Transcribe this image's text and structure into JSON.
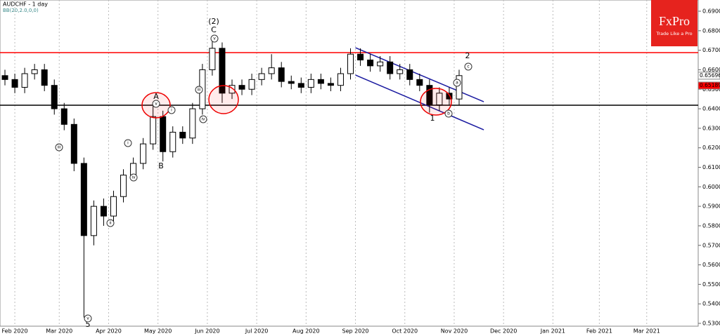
{
  "chart_data": {
    "type": "candlestick",
    "title": "AUDCHF  - 1 day",
    "subtitle": "BB(20,2.0,0,0)",
    "brand": "FxPro",
    "tagline": "Trade Like a Pro",
    "categories": [
      null,
      null,
      null,
      null,
      null,
      null,
      null,
      null,
      null,
      null,
      null,
      null,
      null,
      null,
      null,
      null,
      null,
      null,
      null,
      null,
      null,
      null,
      null,
      null,
      null,
      null,
      null,
      null,
      null,
      null,
      null,
      null,
      null,
      null,
      null,
      null,
      null,
      null,
      null,
      null,
      null,
      null,
      null,
      null,
      null,
      null,
      null
    ],
    "open": [
      0.657,
      0.655,
      0.651,
      0.658,
      0.66,
      0.652,
      0.64,
      0.632,
      0.612,
      0.575,
      0.59,
      0.585,
      0.595,
      0.606,
      0.612,
      0.622,
      0.636,
      0.618,
      0.628,
      0.625,
      0.64,
      0.66,
      0.671,
      0.648,
      0.652,
      0.65,
      0.655,
      0.658,
      0.661,
      0.654,
      0.653,
      0.651,
      0.655,
      0.653,
      0.652,
      0.658,
      0.668,
      0.665,
      0.662,
      0.664,
      0.658,
      0.66,
      0.655,
      0.652,
      0.642,
      0.648,
      0.645
    ],
    "high": [
      0.66,
      0.658,
      0.661,
      0.663,
      0.663,
      0.655,
      0.643,
      0.635,
      0.615,
      0.593,
      0.594,
      0.598,
      0.609,
      0.615,
      0.625,
      0.643,
      0.639,
      0.631,
      0.631,
      0.643,
      0.663,
      0.676,
      0.674,
      0.655,
      0.655,
      0.658,
      0.661,
      0.668,
      0.664,
      0.657,
      0.656,
      0.658,
      0.658,
      0.656,
      0.661,
      0.671,
      0.671,
      0.668,
      0.667,
      0.667,
      0.663,
      0.663,
      0.658,
      0.655,
      0.651,
      0.651,
      0.66
    ],
    "low": [
      0.652,
      0.648,
      0.648,
      0.655,
      0.649,
      0.637,
      0.629,
      0.608,
      0.533,
      0.57,
      0.58,
      0.582,
      0.592,
      0.603,
      0.609,
      0.619,
      0.613,
      0.615,
      0.622,
      0.622,
      0.637,
      0.657,
      0.643,
      0.645,
      0.647,
      0.647,
      0.652,
      0.655,
      0.651,
      0.65,
      0.648,
      0.648,
      0.65,
      0.649,
      0.649,
      0.655,
      0.662,
      0.659,
      0.659,
      0.655,
      0.655,
      0.652,
      0.649,
      0.638,
      0.639,
      0.642,
      0.642
    ],
    "close": [
      0.655,
      0.651,
      0.658,
      0.66,
      0.652,
      0.64,
      0.632,
      0.612,
      0.575,
      0.59,
      0.585,
      0.595,
      0.606,
      0.612,
      0.622,
      0.636,
      0.618,
      0.628,
      0.625,
      0.64,
      0.66,
      0.671,
      0.648,
      0.652,
      0.65,
      0.655,
      0.658,
      0.661,
      0.654,
      0.653,
      0.651,
      0.655,
      0.653,
      0.652,
      0.658,
      0.668,
      0.665,
      0.662,
      0.664,
      0.658,
      0.66,
      0.655,
      0.652,
      0.642,
      0.648,
      0.645,
      0.657
    ],
    "xlim": [
      -0.5,
      70
    ],
    "xticks": [
      {
        "value": 1,
        "label": "Feb 2020"
      },
      {
        "value": 5.5,
        "label": "Mar 2020"
      },
      {
        "value": 10.5,
        "label": "Apr 2020"
      },
      {
        "value": 15.5,
        "label": "May 2020"
      },
      {
        "value": 20.5,
        "label": "Jun 2020"
      },
      {
        "value": 25.5,
        "label": "Jul 2020"
      },
      {
        "value": 30.5,
        "label": "Aug 2020"
      },
      {
        "value": 35.5,
        "label": "Sep 2020"
      },
      {
        "value": 40.5,
        "label": "Oct 2020"
      },
      {
        "value": 45.5,
        "label": "Nov 2020"
      },
      {
        "value": 50.5,
        "label": "Dec 2020"
      },
      {
        "value": 55.5,
        "label": "Jan 2021"
      },
      {
        "value": 60.2,
        "label": "Feb 2021"
      },
      {
        "value": 65,
        "label": "Mar 2021"
      }
    ],
    "ylim": [
      0.53,
      0.69
    ],
    "yticks": [
      {
        "value": 0.53,
        "label": "0.53000"
      },
      {
        "value": 0.54,
        "label": "0.54000"
      },
      {
        "value": 0.55,
        "label": "0.55000"
      },
      {
        "value": 0.56,
        "label": "0.56000"
      },
      {
        "value": 0.57,
        "label": "0.57000"
      },
      {
        "value": 0.58,
        "label": "0.58000"
      },
      {
        "value": 0.59,
        "label": "0.59000"
      },
      {
        "value": 0.6,
        "label": "0.60000"
      },
      {
        "value": 0.61,
        "label": "0.61000"
      },
      {
        "value": 0.62,
        "label": "0.62000"
      },
      {
        "value": 0.63,
        "label": "0.63000"
      },
      {
        "value": 0.64,
        "label": "0.64000"
      },
      {
        "value": 0.65,
        "label": "0.65000"
      },
      {
        "value": 0.66,
        "label": "0.66000"
      },
      {
        "value": 0.67,
        "label": "0.67000"
      },
      {
        "value": 0.68,
        "label": "0.68000"
      },
      {
        "value": 0.69,
        "label": "0.69000"
      }
    ],
    "price_tags": [
      {
        "value": 0.65696,
        "label": "0.65696",
        "color": "#ffffff"
      },
      {
        "value": 0.65189,
        "label": "0.65189",
        "color": "#ff0000"
      }
    ],
    "levels": [
      {
        "value": 0.6688,
        "color": "#ff0000"
      },
      {
        "value": 0.6418,
        "color": "#000000"
      }
    ],
    "channel": {
      "color": "#1a1aa0",
      "x": [
        35.5,
        48.5
      ],
      "upper": [
        0.6713,
        0.6436
      ],
      "lower": [
        0.6573,
        0.6292
      ]
    },
    "wave_labels": [
      "(2)",
      "C",
      "A",
      "B",
      "1",
      "2",
      "5"
    ],
    "wave_labels_circled": [
      "v",
      "iii",
      "iv",
      "i",
      "i",
      "ii",
      "v",
      "c",
      "a",
      "b",
      "iv",
      "v",
      "iii"
    ],
    "up_color": "#ffffff",
    "down_color": "#000000"
  }
}
